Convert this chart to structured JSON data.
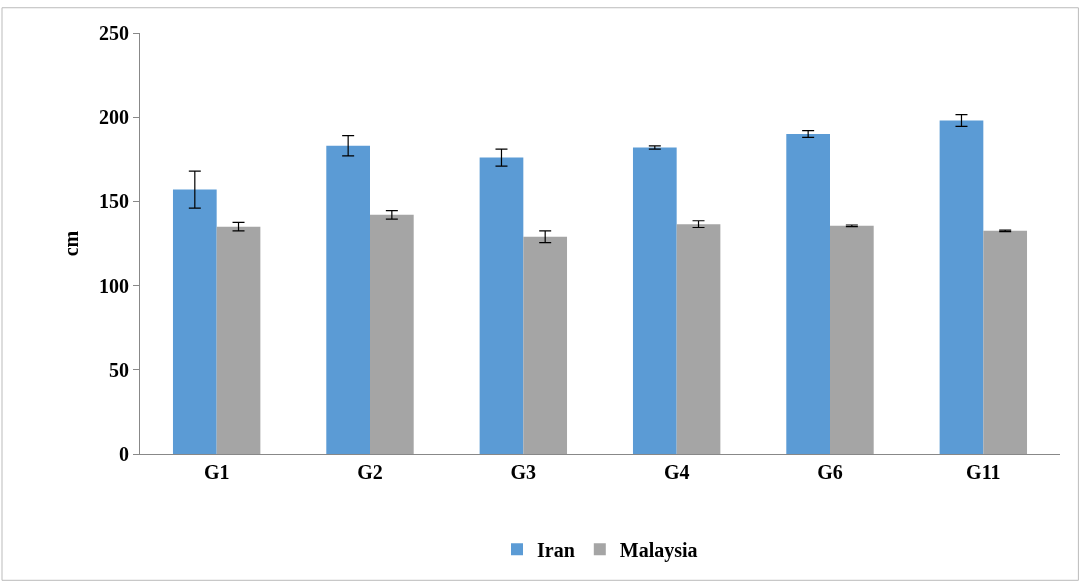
{
  "chart_data": {
    "type": "bar",
    "ylabel": "cm",
    "categories": [
      "G1",
      "G2",
      "G3",
      "G4",
      "G6",
      "G11"
    ],
    "series": [
      {
        "name": "Iran",
        "color": "#5b9bd5",
        "values": [
          157,
          183,
          176,
          182,
          190,
          198
        ],
        "errors": [
          11,
          6,
          5,
          1,
          2,
          3.5
        ]
      },
      {
        "name": "Malaysia",
        "color": "#a5a5a5",
        "values": [
          135,
          142,
          129,
          136.5,
          135.5,
          132.5
        ],
        "errors": [
          2.5,
          2.5,
          3.5,
          2,
          0.5,
          0.5
        ]
      }
    ],
    "ylim": [
      0,
      250
    ],
    "yticks": [
      0,
      50,
      100,
      150,
      200,
      250
    ],
    "legend": "bottom"
  }
}
